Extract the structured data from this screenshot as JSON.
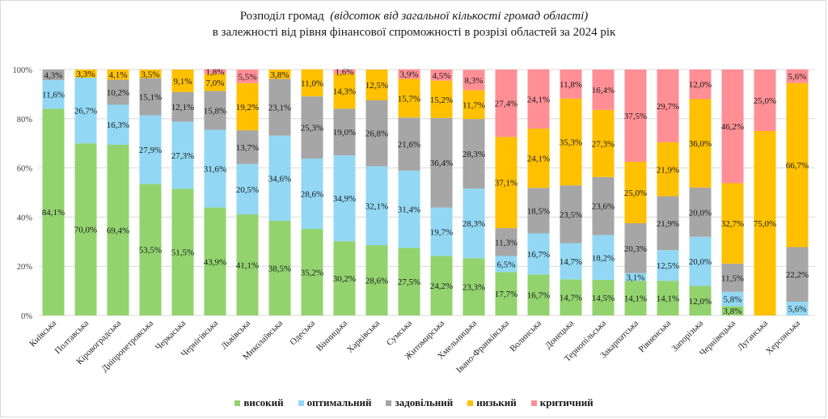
{
  "chart_data": {
    "type": "bar",
    "stacked": true,
    "title_main": "Розподіл громад",
    "title_italic": "(відсоток від загальної кількості громад області)",
    "title_line2": "в залежності від рівня фінансової спроможності в розрізі областей за 2024 рік",
    "xlabel": "",
    "ylabel": "",
    "ylim": [
      0,
      100
    ],
    "yticks": [
      "0%",
      "20%",
      "40%",
      "60%",
      "80%",
      "100%"
    ],
    "ytick_values": [
      0,
      20,
      40,
      60,
      80,
      100
    ],
    "grid": true,
    "legend_position": "bottom",
    "categories": [
      "Київська",
      "Полтавська",
      "Кіровоградська",
      "Дніпропетровська",
      "Черкаська",
      "Чернігівська",
      "Львівська",
      "Миколаївська",
      "Одеська",
      "Вінницька",
      "Харківська",
      "Сумська",
      "Житомирська",
      "Хмельницька",
      "Івано-Франківська",
      "Волинська",
      "Донецька",
      "Тернопільська",
      "Закарпатська",
      "Рівненська",
      "Запорізька",
      "Чернівецька",
      "Луганська",
      "Херсонська"
    ],
    "series": [
      {
        "name": "високий",
        "color": "#92d36e",
        "values": [
          84.1,
          70.0,
          69.4,
          53.5,
          51.5,
          43.9,
          41.1,
          38.5,
          35.2,
          30.2,
          28.6,
          27.5,
          24.2,
          23.3,
          17.7,
          16.7,
          14.7,
          14.5,
          14.1,
          14.1,
          12.0,
          3.8,
          0,
          0
        ]
      },
      {
        "name": "оптимальний",
        "color": "#92d8f4",
        "values": [
          11.6,
          26.7,
          16.3,
          27.9,
          27.3,
          31.6,
          20.5,
          34.6,
          28.6,
          34.9,
          32.1,
          31.4,
          19.7,
          28.3,
          6.5,
          16.7,
          14.7,
          18.2,
          3.1,
          12.5,
          20.0,
          5.8,
          0,
          5.6
        ]
      },
      {
        "name": "задовільний",
        "color": "#a6a6a6",
        "values": [
          4.3,
          0,
          10.2,
          15.1,
          12.1,
          15.8,
          13.7,
          23.1,
          25.3,
          19.0,
          26.8,
          21.6,
          36.4,
          28.3,
          11.3,
          18.5,
          23.5,
          23.6,
          20.3,
          21.9,
          20.0,
          11.5,
          0,
          22.2
        ]
      },
      {
        "name": "низький",
        "color": "#ffc000",
        "values": [
          0,
          3.3,
          4.1,
          3.5,
          9.1,
          7.0,
          19.2,
          3.8,
          11.0,
          14.3,
          12.5,
          15.7,
          15.2,
          11.7,
          37.1,
          24.1,
          35.3,
          27.3,
          25.0,
          21.9,
          36.0,
          32.7,
          75.0,
          66.7
        ]
      },
      {
        "name": "критичний",
        "color": "#ff8f95",
        "values": [
          0,
          0,
          0,
          0,
          0,
          1.8,
          5.5,
          0,
          0,
          1.6,
          0,
          3.9,
          4.5,
          8.3,
          27.4,
          24.1,
          11.8,
          16.4,
          37.5,
          29.7,
          12.0,
          46.2,
          25.0,
          5.6
        ]
      }
    ],
    "value_label_format": "comma-decimal-percent"
  }
}
